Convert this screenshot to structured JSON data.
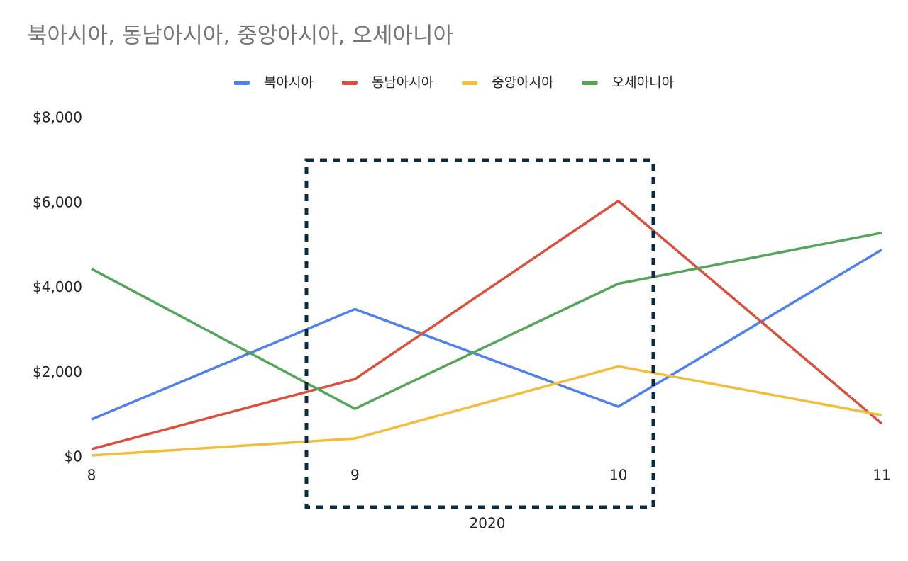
{
  "chart_data": {
    "type": "line",
    "title": "북아시아, 동남아시아, 중앙아시아, 오세아니아",
    "x_label": "2020",
    "categories": [
      "8",
      "9",
      "10",
      "11"
    ],
    "series": [
      {
        "name": "북아시아",
        "color": "#4f81e8",
        "values": [
          900,
          3500,
          1200,
          4900
        ]
      },
      {
        "name": "동남아시아",
        "color": "#d9503f",
        "values": [
          200,
          1850,
          6050,
          800
        ]
      },
      {
        "name": "중앙아시아",
        "color": "#f2bd3a",
        "values": [
          50,
          450,
          2150,
          1000
        ]
      },
      {
        "name": "오세아니아",
        "color": "#55a45a",
        "values": [
          4450,
          1150,
          4100,
          5300
        ]
      }
    ],
    "ylim": [
      0,
      8000
    ],
    "yticks": [
      {
        "value": 0,
        "label": "$0"
      },
      {
        "value": 2000,
        "label": "$2,000"
      },
      {
        "value": 4000,
        "label": "$4,000"
      },
      {
        "value": 6000,
        "label": "$6,000"
      },
      {
        "value": 8000,
        "label": "$8,000"
      }
    ],
    "grid": false,
    "legend": "top"
  }
}
